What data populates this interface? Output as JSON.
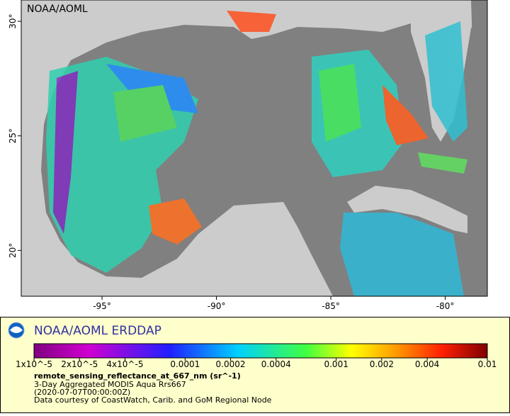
{
  "map": {
    "watermark": "NOAA/AOML",
    "xlim": [
      -98.53,
      -78.16
    ],
    "ylim": [
      18.0,
      30.93
    ],
    "lon_ticks": [
      {
        "value": -95,
        "label": "-95°"
      },
      {
        "value": -90,
        "label": "-90°"
      },
      {
        "value": -85,
        "label": "-85°"
      },
      {
        "value": -80,
        "label": "-80°"
      }
    ],
    "lat_ticks": [
      {
        "value": 20,
        "label": "20°"
      },
      {
        "value": 25,
        "label": "25°"
      },
      {
        "value": 30,
        "label": "30°"
      }
    ]
  },
  "legend": {
    "brand": "NOAA/AOML ERDDAP",
    "ticks": [
      {
        "value": 1e-05,
        "label": "1x10^-5"
      },
      {
        "value": 2e-05,
        "label": "2x10^-5"
      },
      {
        "value": 4e-05,
        "label": "4x10^-5"
      },
      0.0001,
      0.0002,
      0.0004,
      0.001,
      0.002,
      0.004,
      0.01
    ],
    "variable": "remote_sensing_reflectance_at_667_nm (sr^-1)",
    "lines": [
      "3-Day Aggregated MODIS Aqua Rrs667",
      "(2020-07-07T00:00:00Z)",
      "Data courtesy of CoastWatch, Carib. and GoM Regional Node"
    ]
  }
}
